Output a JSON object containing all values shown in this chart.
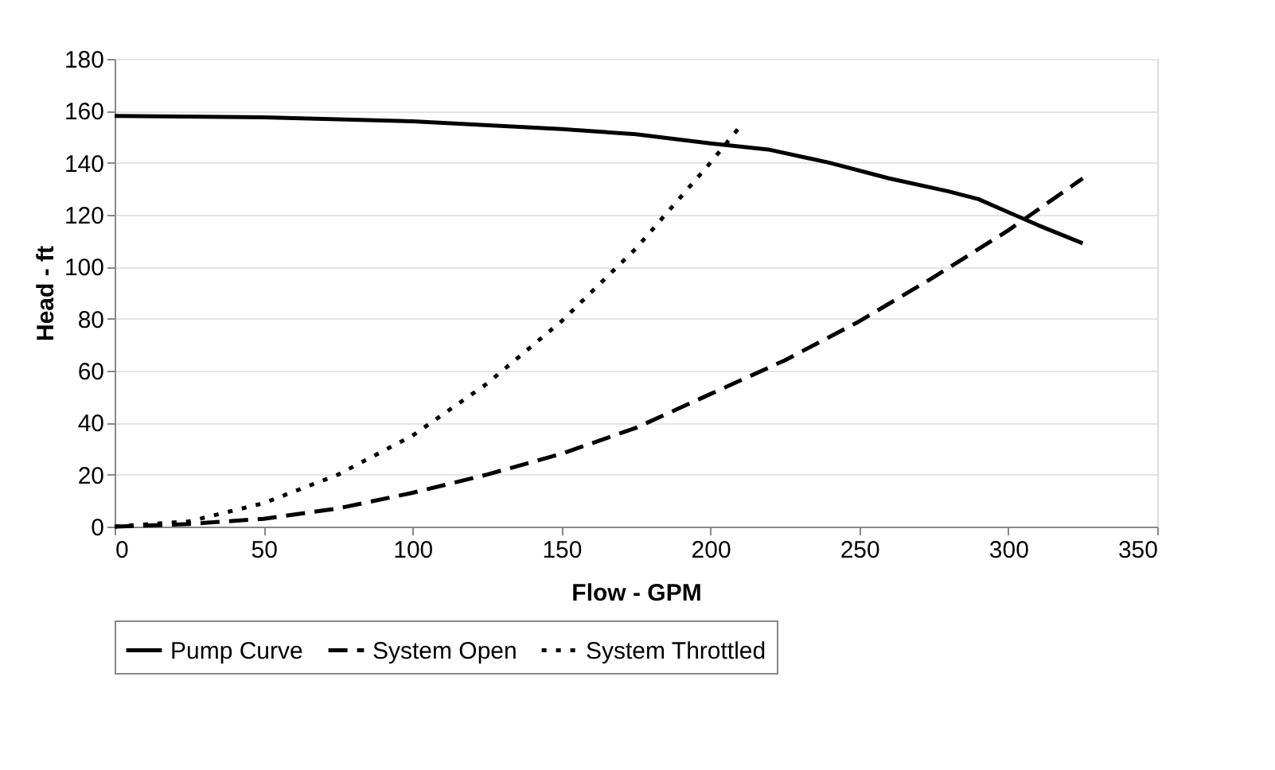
{
  "chart_data": {
    "type": "line",
    "xlabel": "Flow - GPM",
    "ylabel": "Head - ft",
    "xlim": [
      0,
      350
    ],
    "xticks": [
      0,
      50,
      100,
      150,
      200,
      250,
      300,
      350
    ],
    "ylim": [
      0,
      180
    ],
    "yticks": [
      0,
      20,
      40,
      60,
      80,
      100,
      120,
      140,
      160,
      180
    ],
    "grid": "y",
    "legend": "bottom",
    "marker": "none",
    "series": [
      {
        "name": "Pump Curve",
        "color": "#000000",
        "line_style": "solid",
        "x": [
          0,
          50,
          100,
          150,
          175,
          200,
          220,
          240,
          260,
          280,
          290,
          300,
          310,
          325
        ],
        "values": [
          158,
          157.5,
          156,
          153,
          151,
          147.5,
          145,
          140,
          134,
          129,
          126,
          121,
          116,
          109
        ]
      },
      {
        "name": "System Open",
        "color": "#000000",
        "line_style": "dashed",
        "x": [
          0,
          25,
          50,
          75,
          100,
          125,
          150,
          175,
          200,
          225,
          250,
          275,
          300,
          325
        ],
        "values": [
          0,
          1,
          3,
          7,
          13,
          20,
          28,
          38,
          51,
          64,
          79,
          96,
          114,
          134
        ]
      },
      {
        "name": "System Throttled",
        "color": "#000000",
        "line_style": "dotted",
        "x": [
          0,
          25,
          50,
          75,
          100,
          125,
          150,
          175,
          200,
          210
        ],
        "values": [
          0,
          2,
          9,
          20,
          35,
          55,
          79,
          107,
          140,
          154
        ]
      }
    ]
  }
}
